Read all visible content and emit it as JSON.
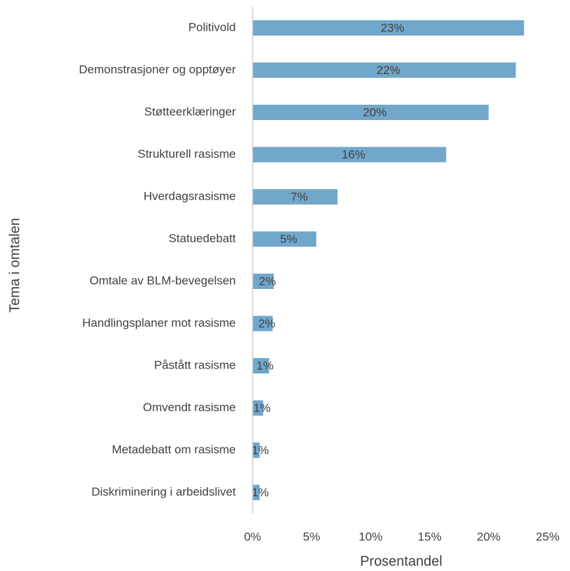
{
  "chart_data": {
    "type": "barh",
    "xlabel": "Prosentandel",
    "ylabel": "Tema i omtalen",
    "categories": [
      "Politivold",
      "Demonstrasjoner og opptøyer",
      "Støtteerklæringer",
      "Strukturell rasisme",
      "Hverdagsrasisme",
      "Statuedebatt",
      "Omtale av BLM-bevegelsen",
      "Handlingsplaner mot rasisme",
      "Påstått rasisme",
      "Omvendt rasisme",
      "Metadebatt om rasisme",
      "Diskriminering i arbeidslivet"
    ],
    "values": [
      23.0,
      22.3,
      20.0,
      16.4,
      7.2,
      5.4,
      1.8,
      1.7,
      1.4,
      0.9,
      0.6,
      0.6
    ],
    "value_labels": [
      "23%",
      "22%",
      "20%",
      "16%",
      "7%",
      "5%",
      "2%",
      "2%",
      "1%",
      "1%",
      "1%",
      "1%"
    ],
    "color": "#71a7ca",
    "xlim": [
      0,
      25
    ],
    "xticks": [
      {
        "value": 0,
        "label": "0%"
      },
      {
        "value": 5,
        "label": "5%"
      },
      {
        "value": 10,
        "label": "10%"
      },
      {
        "value": 15,
        "label": "15%"
      },
      {
        "value": 20,
        "label": "20%"
      },
      {
        "value": 25,
        "label": "25%"
      }
    ]
  }
}
